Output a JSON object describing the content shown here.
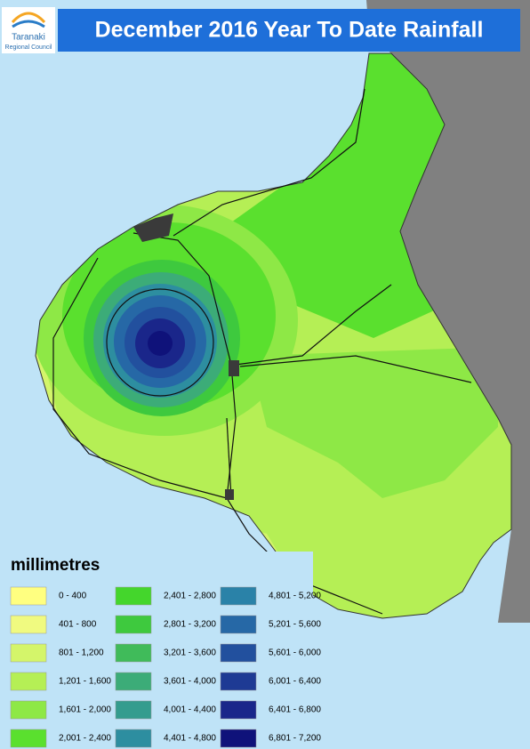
{
  "header": {
    "title": "December 2016 Year To Date Rainfall",
    "logo_line1": "Taranaki",
    "logo_line2": "Regional Council"
  },
  "legend": {
    "title": "millimetres",
    "items": [
      {
        "label": "0 - 400",
        "color": "#ffff80"
      },
      {
        "label": "401 - 800",
        "color": "#f0fa80"
      },
      {
        "label": "801 - 1,200",
        "color": "#d4f56a"
      },
      {
        "label": "1,201 - 1,600",
        "color": "#b5ef55"
      },
      {
        "label": "1,601 - 2,000",
        "color": "#8ee846"
      },
      {
        "label": "2,001 - 2,400",
        "color": "#5ae02e"
      },
      {
        "label": "2,401 - 2,800",
        "color": "#44d62c"
      },
      {
        "label": "2,801 - 3,200",
        "color": "#3ec93e"
      },
      {
        "label": "3,201 - 3,600",
        "color": "#40bb5a"
      },
      {
        "label": "3,601 - 4,000",
        "color": "#3cac78"
      },
      {
        "label": "4,001 - 4,400",
        "color": "#349c8e"
      },
      {
        "label": "4,401 - 4,800",
        "color": "#2d8ea0"
      },
      {
        "label": "4,801 - 5,200",
        "color": "#2a82a8"
      },
      {
        "label": "5,201 - 5,600",
        "color": "#2668a6"
      },
      {
        "label": "5,601 - 6,000",
        "color": "#22509e"
      },
      {
        "label": "6,001 - 6,400",
        "color": "#1e3a94"
      },
      {
        "label": "6,401 - 6,800",
        "color": "#1a268a"
      },
      {
        "label": "6,801 - 7,200",
        "color": "#0f127a"
      }
    ]
  }
}
